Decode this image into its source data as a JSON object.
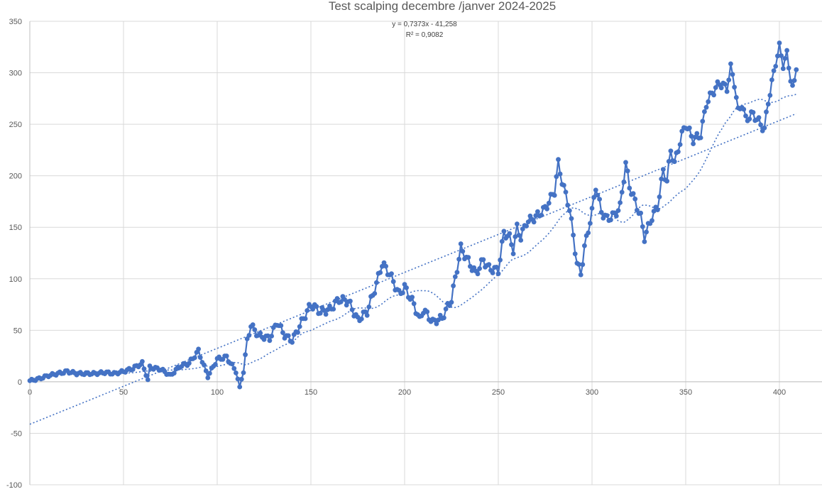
{
  "chart_data": {
    "type": "line",
    "title": "Test scalping decembre /janver 2024-2025",
    "xlabel": "",
    "ylabel": "",
    "xlim": [
      0,
      425
    ],
    "ylim": [
      -100,
      350
    ],
    "x_ticks": [
      0,
      50,
      100,
      150,
      200,
      250,
      300,
      350,
      400
    ],
    "y_ticks": [
      -100,
      -50,
      0,
      50,
      100,
      150,
      200,
      250,
      300,
      350
    ],
    "grid": true,
    "legend": "none",
    "colors": {
      "series": "#4472c4",
      "trend": "#4472c4"
    },
    "trendline_equation": "y = 0,7373x - 41,258",
    "trendline_r2": "R² = 0,9082",
    "trendline": {
      "slope": 0.7373,
      "intercept": -41.258,
      "x_range": [
        0,
        409
      ]
    },
    "key_points": [
      [
        0,
        1
      ],
      [
        5,
        3
      ],
      [
        10,
        6
      ],
      [
        15,
        8
      ],
      [
        20,
        10
      ],
      [
        25,
        8
      ],
      [
        30,
        8
      ],
      [
        35,
        8
      ],
      [
        40,
        9
      ],
      [
        45,
        8
      ],
      [
        50,
        10
      ],
      [
        55,
        13
      ],
      [
        60,
        18
      ],
      [
        63,
        2
      ],
      [
        64,
        14
      ],
      [
        70,
        12
      ],
      [
        75,
        6
      ],
      [
        80,
        15
      ],
      [
        85,
        18
      ],
      [
        90,
        30
      ],
      [
        95,
        5
      ],
      [
        100,
        22
      ],
      [
        105,
        24
      ],
      [
        110,
        10
      ],
      [
        112,
        -5
      ],
      [
        114,
        10
      ],
      [
        116,
        40
      ],
      [
        118,
        55
      ],
      [
        122,
        45
      ],
      [
        128,
        42
      ],
      [
        132,
        58
      ],
      [
        136,
        45
      ],
      [
        140,
        40
      ],
      [
        145,
        58
      ],
      [
        150,
        75
      ],
      [
        155,
        68
      ],
      [
        160,
        70
      ],
      [
        165,
        80
      ],
      [
        170,
        78
      ],
      [
        175,
        60
      ],
      [
        180,
        68
      ],
      [
        185,
        95
      ],
      [
        188,
        115
      ],
      [
        192,
        105
      ],
      [
        197,
        85
      ],
      [
        200,
        92
      ],
      [
        205,
        75
      ],
      [
        208,
        60
      ],
      [
        210,
        70
      ],
      [
        215,
        58
      ],
      [
        220,
        62
      ],
      [
        225,
        80
      ],
      [
        230,
        130
      ],
      [
        233,
        120
      ],
      [
        238,
        105
      ],
      [
        242,
        118
      ],
      [
        245,
        110
      ],
      [
        250,
        108
      ],
      [
        253,
        145
      ],
      [
        256,
        140
      ],
      [
        258,
        128
      ],
      [
        260,
        150
      ],
      [
        262,
        140
      ],
      [
        265,
        155
      ],
      [
        270,
        160
      ],
      [
        275,
        168
      ],
      [
        280,
        185
      ],
      [
        282,
        212
      ],
      [
        284,
        195
      ],
      [
        288,
        168
      ],
      [
        292,
        115
      ],
      [
        294,
        105
      ],
      [
        296,
        130
      ],
      [
        300,
        165
      ],
      [
        302,
        190
      ],
      [
        305,
        165
      ],
      [
        308,
        158
      ],
      [
        312,
        162
      ],
      [
        315,
        170
      ],
      [
        318,
        212
      ],
      [
        320,
        190
      ],
      [
        322,
        180
      ],
      [
        326,
        160
      ],
      [
        328,
        140
      ],
      [
        332,
        160
      ],
      [
        335,
        170
      ],
      [
        338,
        205
      ],
      [
        340,
        195
      ],
      [
        342,
        225
      ],
      [
        344,
        212
      ],
      [
        348,
        240
      ],
      [
        350,
        250
      ],
      [
        354,
        235
      ],
      [
        358,
        240
      ],
      [
        361,
        270
      ],
      [
        364,
        280
      ],
      [
        368,
        290
      ],
      [
        372,
        285
      ],
      [
        374,
        305
      ],
      [
        376,
        290
      ],
      [
        378,
        262
      ],
      [
        380,
        270
      ],
      [
        382,
        255
      ],
      [
        386,
        260
      ],
      [
        390,
        250
      ],
      [
        392,
        245
      ],
      [
        394,
        272
      ],
      [
        396,
        290
      ],
      [
        398,
        310
      ],
      [
        400,
        325
      ],
      [
        402,
        308
      ],
      [
        404,
        318
      ],
      [
        406,
        295
      ],
      [
        407,
        285
      ],
      [
        408,
        290
      ],
      [
        409,
        303
      ]
    ]
  }
}
